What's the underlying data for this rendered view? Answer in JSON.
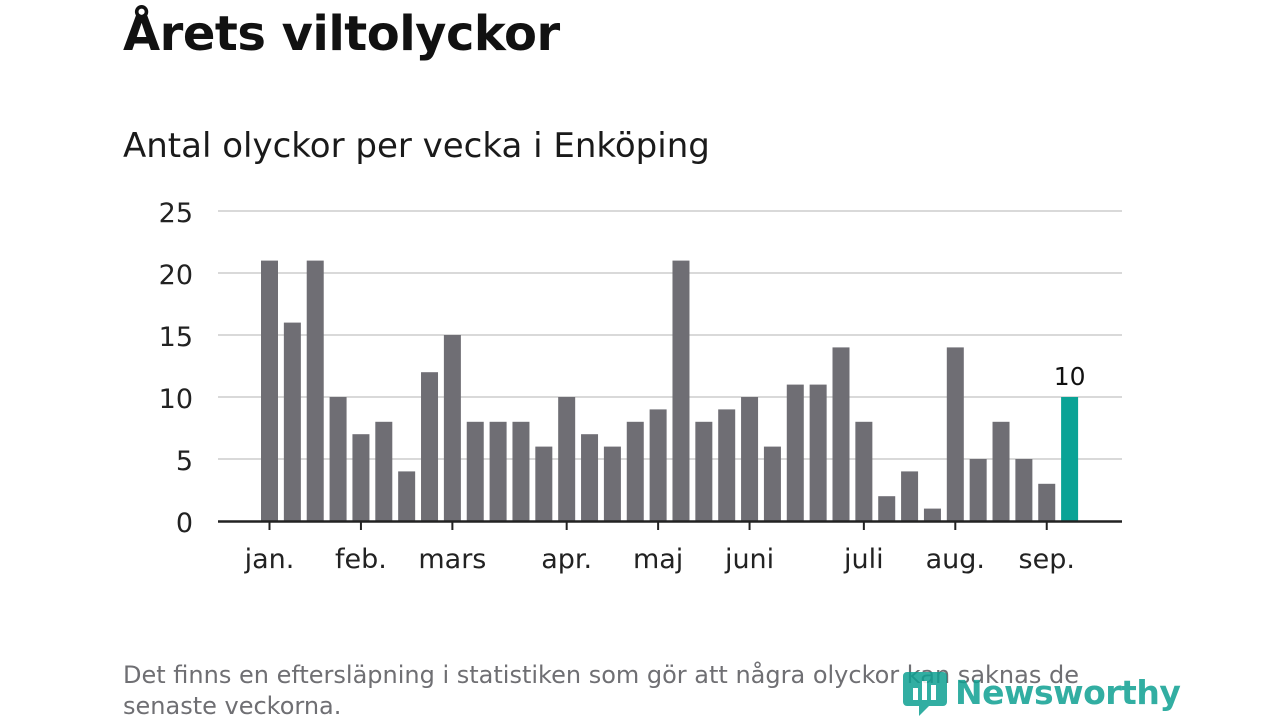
{
  "header": {
    "title": "Årets viltolyckor",
    "subtitle": "Antal olyckor per vecka i Enköping"
  },
  "footnote": "Det finns en eftersläpning i statistiken som gör att några olyckor kan saknas de senaste veckorna.",
  "brand": {
    "name": "Newsworthy",
    "icon": "newsworthy-logo-icon",
    "color": "#0fa092"
  },
  "colors": {
    "bar": "#6f6e74",
    "highlight": "#0aa396",
    "grid": "#d9d9d9",
    "axis": "#222222"
  },
  "chart_data": {
    "type": "bar",
    "title": "",
    "xlabel": "",
    "ylabel": "",
    "ylim": [
      0,
      25
    ],
    "yticks": [
      0,
      5,
      10,
      15,
      20,
      25
    ],
    "grid": true,
    "legend": "none",
    "values": [
      21,
      16,
      21,
      10,
      7,
      8,
      4,
      12,
      15,
      8,
      8,
      8,
      6,
      10,
      7,
      6,
      8,
      9,
      21,
      8,
      9,
      10,
      6,
      11,
      11,
      14,
      8,
      2,
      4,
      1,
      14,
      5,
      8,
      5,
      3,
      10
    ],
    "highlight_index": 35,
    "highlight_label": "10",
    "month_labels": [
      {
        "label": "jan.",
        "week_index": 0
      },
      {
        "label": "feb.",
        "week_index": 4
      },
      {
        "label": "mars",
        "week_index": 8
      },
      {
        "label": "apr.",
        "week_index": 13
      },
      {
        "label": "maj",
        "week_index": 17
      },
      {
        "label": "juni",
        "week_index": 21
      },
      {
        "label": "juli",
        "week_index": 26
      },
      {
        "label": "aug.",
        "week_index": 30
      },
      {
        "label": "sep.",
        "week_index": 34
      }
    ]
  }
}
